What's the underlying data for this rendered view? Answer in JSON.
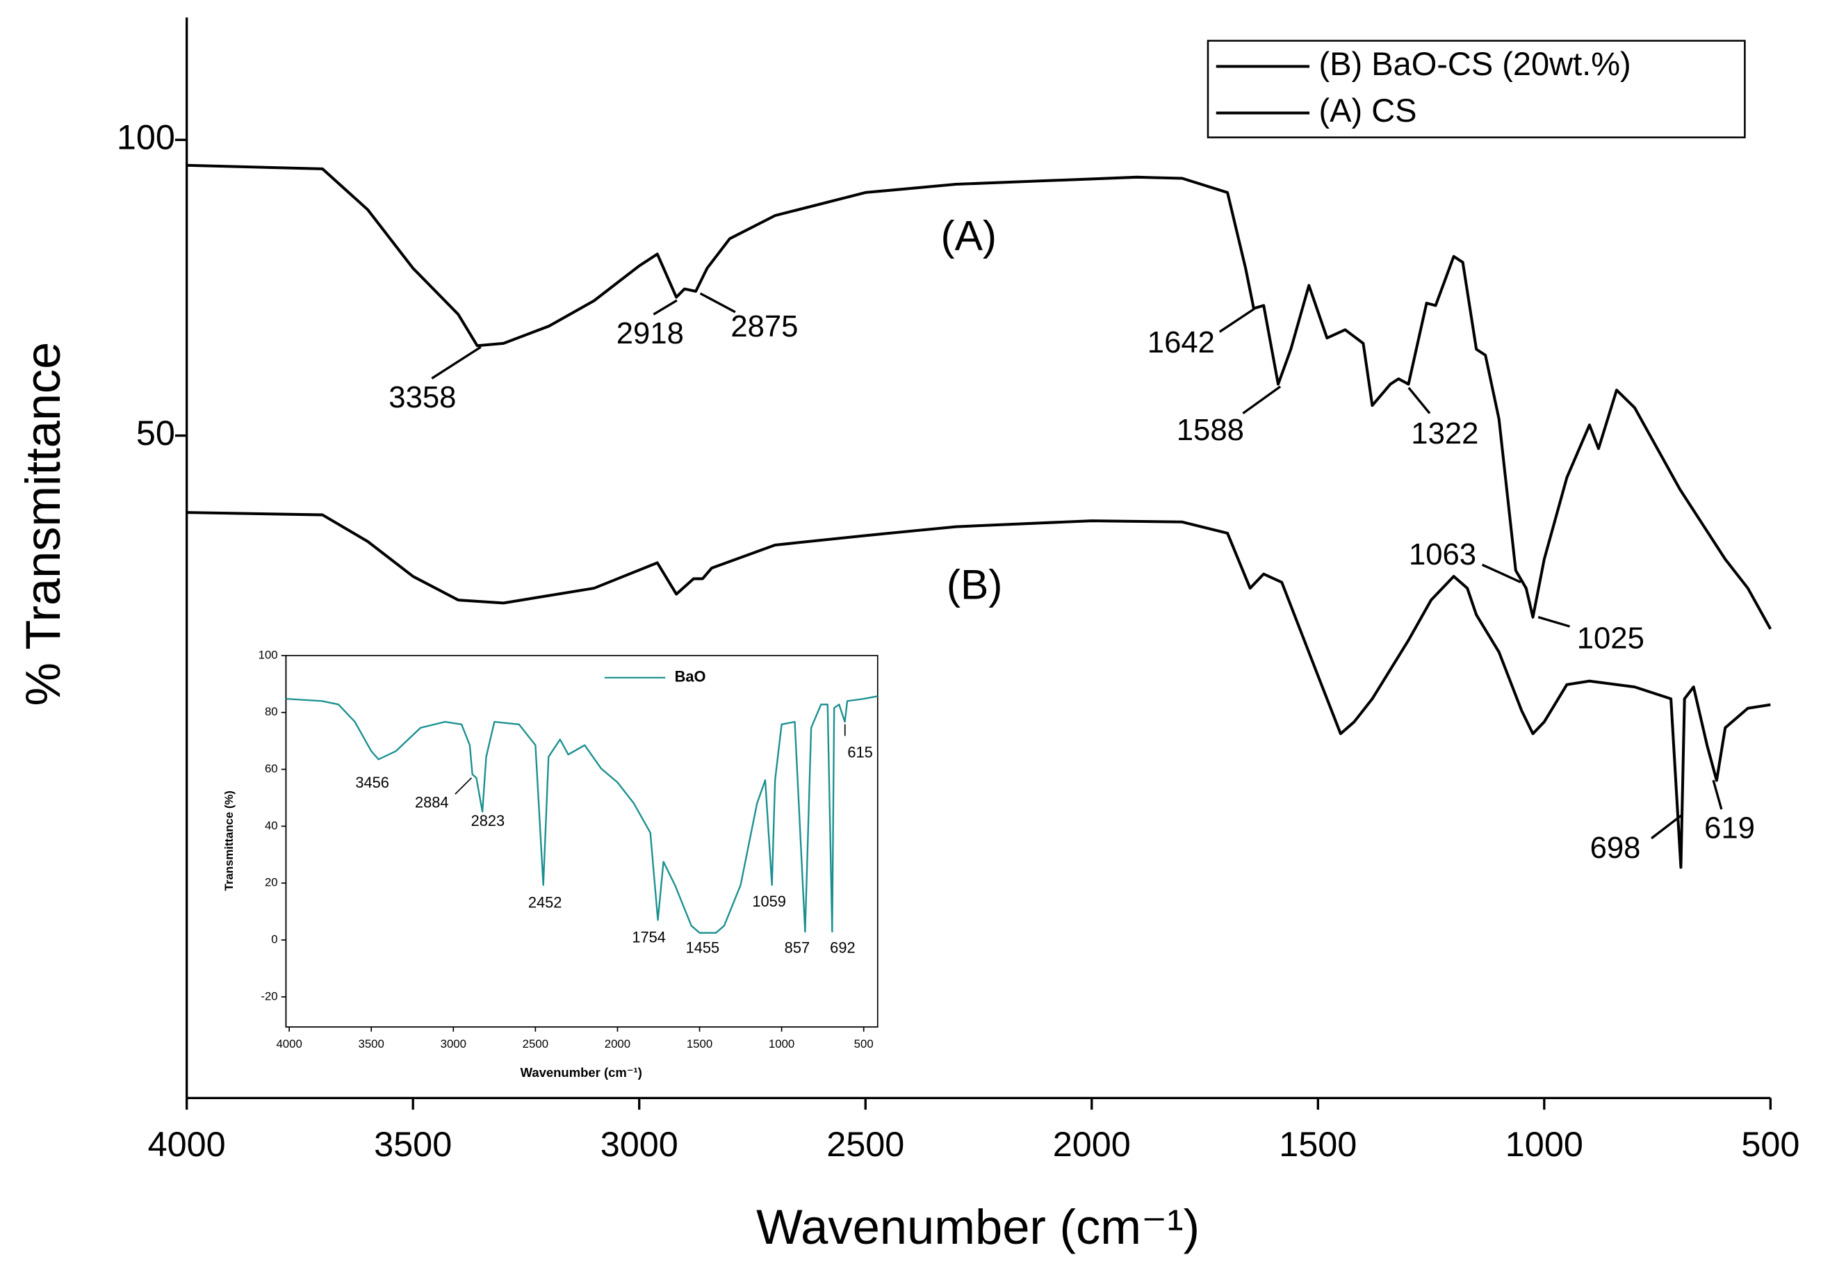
{
  "chart_data": [
    {
      "type": "line",
      "xlabel": "Wavenumber (cm⁻¹)",
      "ylabel": "% Transmittance",
      "xlim": [
        4000,
        500
      ],
      "ylim": [
        -62,
        120.7
      ],
      "xticks": [
        4000,
        3500,
        3000,
        2500,
        2000,
        1500,
        1000,
        500
      ],
      "yticks": [
        100,
        50
      ],
      "legend": "upper right",
      "series": [
        {
          "name": "(B) BaO-CS (20wt.%)",
          "color": "#000000",
          "x": [
            4000,
            3700,
            3600,
            3500,
            3400,
            3300,
            3100,
            2960,
            2918,
            2880,
            2860,
            2840,
            2700,
            2500,
            2300,
            2000,
            1800,
            1700,
            1650,
            1620,
            1580,
            1500,
            1450,
            1420,
            1380,
            1300,
            1250,
            1200,
            1170,
            1150,
            1100,
            1050,
            1025,
            1000,
            950,
            900,
            800,
            720,
            698,
            690,
            670,
            640,
            619,
            600,
            550,
            500
          ],
          "values": [
            37.0,
            36.6,
            32.1,
            26.2,
            22.2,
            21.7,
            24.2,
            28.5,
            23.2,
            25.8,
            25.8,
            27.6,
            31.5,
            33.1,
            34.6,
            35.6,
            35.4,
            33.5,
            24.2,
            26.6,
            25.2,
            9.4,
            -0.4,
            1.6,
            5.5,
            15.4,
            22.2,
            26.2,
            24.2,
            19.7,
            13.4,
            3.5,
            -0.4,
            1.6,
            7.9,
            8.5,
            7.5,
            5.5,
            -23.0,
            5.5,
            7.5,
            -2.4,
            -8.3,
            0.6,
            3.9,
            4.5
          ]
        },
        {
          "name": "(A) CS",
          "color": "#000000",
          "x": [
            4000,
            3700,
            3600,
            3500,
            3400,
            3358,
            3300,
            3200,
            3100,
            3000,
            2960,
            2918,
            2900,
            2875,
            2850,
            2800,
            2700,
            2500,
            2300,
            2100,
            1900,
            1800,
            1700,
            1660,
            1642,
            1620,
            1588,
            1560,
            1520,
            1480,
            1440,
            1400,
            1380,
            1340,
            1322,
            1300,
            1260,
            1240,
            1200,
            1180,
            1150,
            1130,
            1100,
            1063,
            1040,
            1025,
            1000,
            950,
            900,
            880,
            840,
            800,
            700,
            600,
            550,
            500
          ],
          "values": [
            95.7,
            95.1,
            88.2,
            78.3,
            70.5,
            65.2,
            65.6,
            68.5,
            72.8,
            78.7,
            80.7,
            73.4,
            74.8,
            74.4,
            78.3,
            83.3,
            87.2,
            91.1,
            92.5,
            93.1,
            93.7,
            93.5,
            91.1,
            78.3,
            71.5,
            72.0,
            58.7,
            64.6,
            75.4,
            66.5,
            67.9,
            65.6,
            55.1,
            58.7,
            59.6,
            58.7,
            72.4,
            72.0,
            80.3,
            79.3,
            64.6,
            63.6,
            52.8,
            27.2,
            24.2,
            19.3,
            29.1,
            42.9,
            51.8,
            47.8,
            57.7,
            54.7,
            40.9,
            29.1,
            24.2,
            17.3
          ]
        }
      ],
      "annotations": [
        "3358",
        "2918",
        "2875",
        "1642",
        "1588",
        "1322",
        "1063",
        "1025",
        "698",
        "619",
        "(A)",
        "(B)"
      ]
    },
    {
      "type": "line",
      "xlabel": "Wavenumber (cm⁻¹)",
      "ylabel": "Transmittance (%)",
      "xlim": [
        4020,
        415
      ],
      "ylim": [
        -30.6,
        100
      ],
      "xticks": [
        4000,
        3500,
        3000,
        2500,
        2000,
        1500,
        1000,
        500
      ],
      "yticks": [
        -20,
        0,
        20,
        40,
        60,
        80,
        100
      ],
      "legend": "upper center",
      "series": [
        {
          "name": "BaO",
          "color": "#1a8f8f",
          "x": [
            4020,
            3800,
            3700,
            3600,
            3500,
            3456,
            3350,
            3200,
            3050,
            2950,
            2900,
            2884,
            2860,
            2823,
            2800,
            2750,
            2600,
            2500,
            2452,
            2420,
            2350,
            2300,
            2200,
            2100,
            2000,
            1900,
            1800,
            1754,
            1720,
            1650,
            1550,
            1500,
            1400,
            1350,
            1250,
            1150,
            1100,
            1059,
            1040,
            1000,
            920,
            857,
            820,
            760,
            720,
            692,
            680,
            650,
            615,
            600,
            500,
            415
          ],
          "values": [
            84.8,
            84.0,
            82.8,
            76.7,
            66.4,
            63.5,
            66.4,
            74.6,
            76.7,
            75.8,
            68.5,
            58.2,
            57.0,
            45.1,
            64.4,
            76.7,
            75.8,
            68.5,
            19.3,
            64.4,
            70.5,
            65.2,
            68.5,
            60.3,
            55.4,
            48.0,
            37.7,
            7.0,
            27.5,
            19.3,
            5.0,
            2.5,
            2.5,
            5.0,
            19.3,
            48.0,
            56.2,
            19.3,
            56.2,
            75.8,
            76.7,
            2.9,
            74.6,
            82.8,
            82.8,
            2.9,
            81.6,
            82.8,
            76.7,
            84.0,
            84.8,
            85.7
          ]
        }
      ],
      "annotations": [
        "3456",
        "2884",
        "2823",
        "2452",
        "1754",
        "1455",
        "1059",
        "857",
        "692",
        "615"
      ]
    }
  ]
}
